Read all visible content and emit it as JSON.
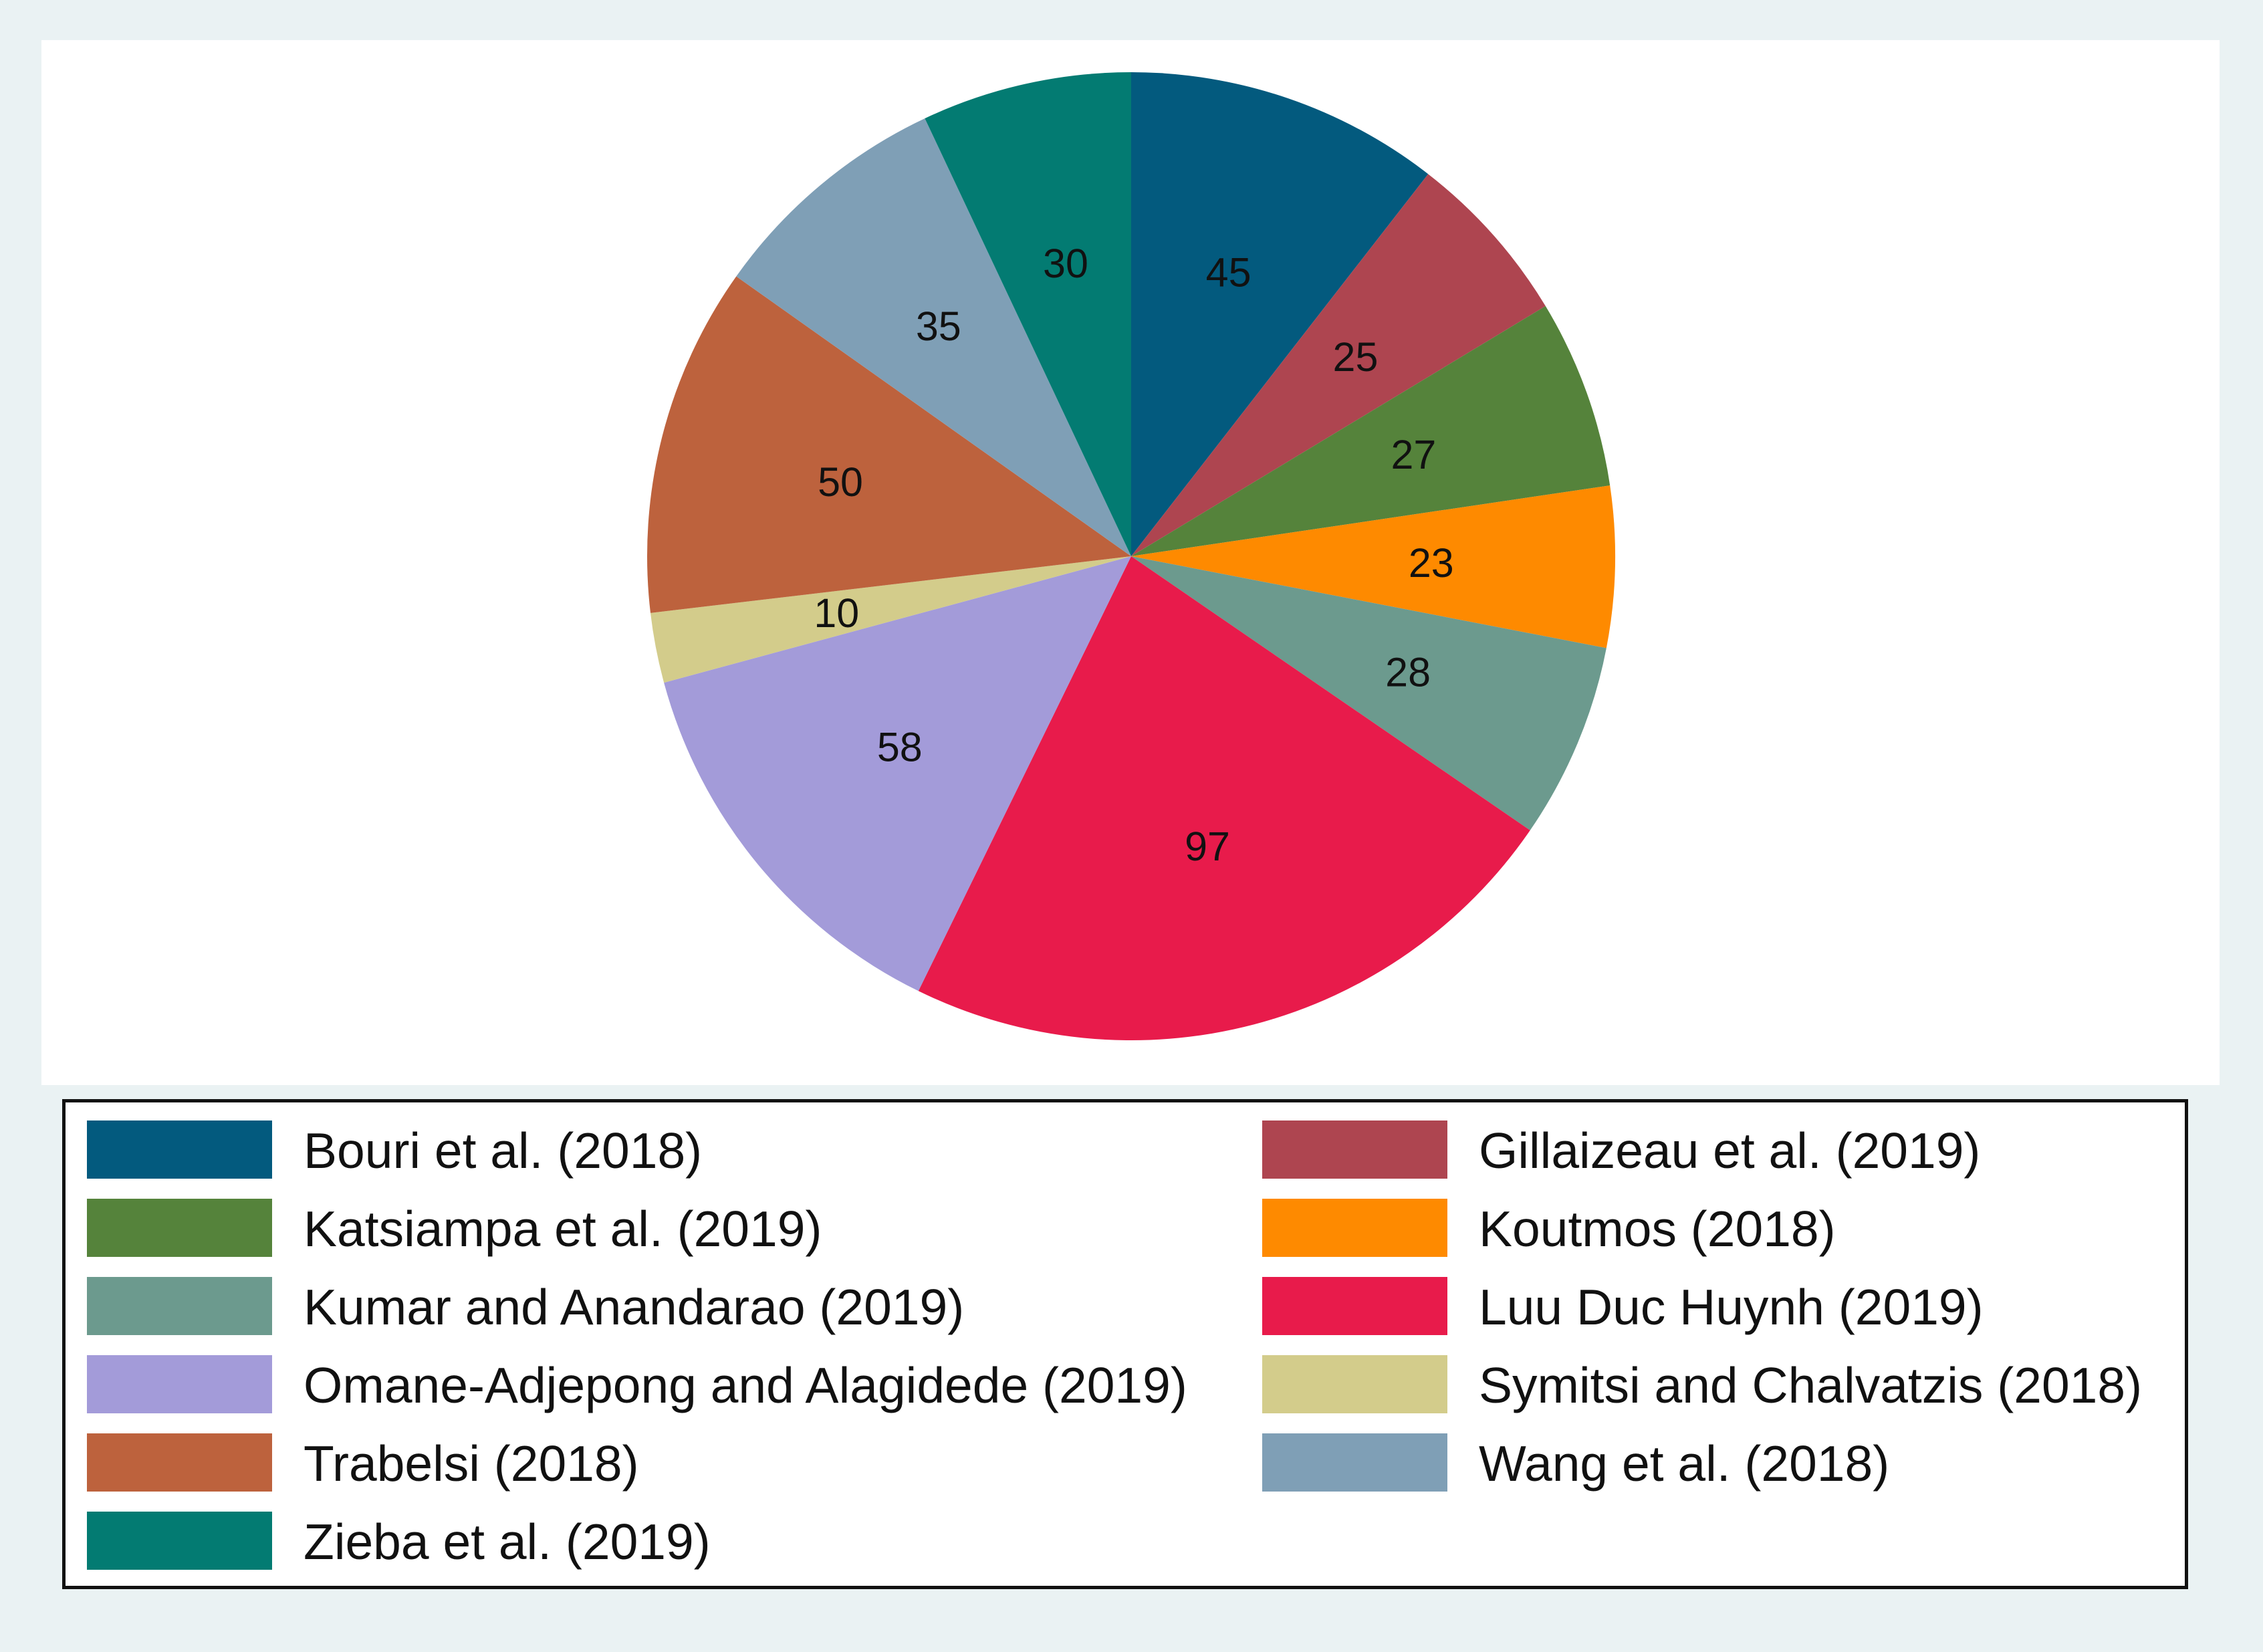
{
  "chart_data": {
    "type": "pie",
    "start": "12 o'clock",
    "direction": "clockwise",
    "slices": [
      {
        "label": "Bouri et al. (2018)",
        "value": 45,
        "color": "#035a7e"
      },
      {
        "label": "Gillaizeau et al. (2019)",
        "value": 25,
        "color": "#ae4550"
      },
      {
        "label": "Katsiampa et al. (2019)",
        "value": 27,
        "color": "#55833b"
      },
      {
        "label": "Koutmos (2018)",
        "value": 23,
        "color": "#fe8a00"
      },
      {
        "label": "Kumar and Anandarao (2019)",
        "value": 28,
        "color": "#6c9a8e"
      },
      {
        "label": "Luu Duc Huynh (2019)",
        "value": 97,
        "color": "#e81b4b"
      },
      {
        "label": "Omane-Adjepong and Alagidede (2019)",
        "value": 58,
        "color": "#a39bd9"
      },
      {
        "label": "Symitsi and Chalvatzis (2018)",
        "value": 10,
        "color": "#d3cc8b"
      },
      {
        "label": "Trabelsi (2018)",
        "value": 50,
        "color": "#bd623d"
      },
      {
        "label": "Wang et al. (2018)",
        "value": 35,
        "color": "#7f9fb6"
      },
      {
        "label": "Zieba et al. (2019)",
        "value": 30,
        "color": "#037b72"
      }
    ],
    "legend": {
      "placement": "bottom",
      "columns": 2,
      "border": true
    }
  }
}
